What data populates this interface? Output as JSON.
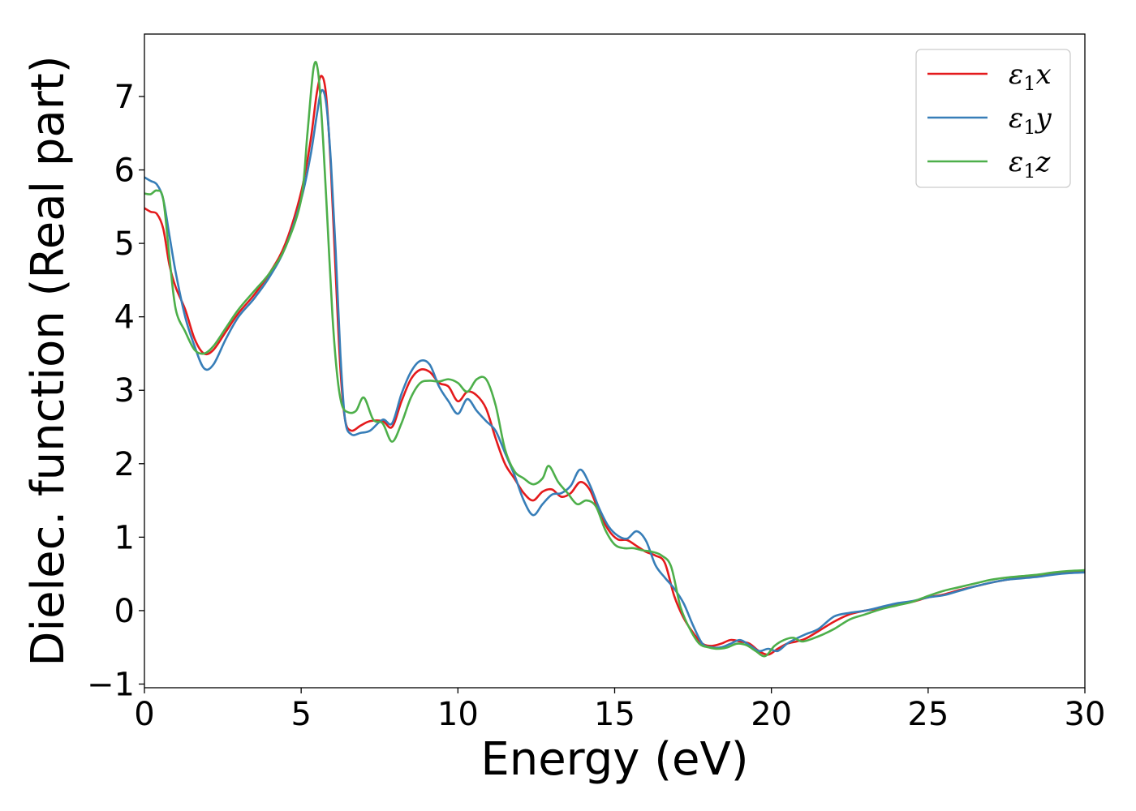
{
  "chart_data": {
    "type": "line",
    "title": "",
    "xlabel": "Energy (eV)",
    "ylabel": "Dielec. function (Real part)",
    "xlim": [
      0,
      30
    ],
    "ylim": [
      -1.05,
      7.85
    ],
    "xticks": [
      0,
      5,
      10,
      15,
      20,
      25,
      30
    ],
    "yticks": [
      -1,
      0,
      1,
      2,
      3,
      4,
      5,
      6,
      7
    ],
    "xtick_labels": [
      "0",
      "5",
      "10",
      "15",
      "20",
      "25",
      "30"
    ],
    "ytick_labels": [
      "−1",
      "0",
      "1",
      "2",
      "3",
      "4",
      "5",
      "6",
      "7"
    ],
    "grid": false,
    "legend_position": "top-right",
    "series": [
      {
        "name": "ε1x",
        "legend_base": "ε",
        "legend_sub": "1",
        "legend_var": "x",
        "color": "#e41a1c",
        "x": [
          0,
          0.2,
          0.4,
          0.6,
          0.8,
          1.0,
          1.3,
          1.6,
          1.9,
          2.2,
          2.6,
          3.0,
          3.5,
          4.0,
          4.5,
          5.0,
          5.3,
          5.5,
          5.65,
          5.8,
          5.95,
          6.1,
          6.25,
          6.4,
          6.6,
          6.9,
          7.2,
          7.6,
          7.9,
          8.2,
          8.5,
          8.8,
          9.1,
          9.4,
          9.7,
          10.0,
          10.3,
          10.6,
          10.9,
          11.2,
          11.5,
          11.8,
          12.1,
          12.4,
          12.7,
          13.0,
          13.3,
          13.6,
          13.9,
          14.2,
          14.5,
          14.8,
          15.1,
          15.4,
          15.7,
          16.0,
          16.3,
          16.6,
          16.9,
          17.2,
          17.5,
          17.8,
          18.1,
          18.4,
          18.7,
          19.0,
          19.3,
          19.6,
          19.9,
          20.2,
          20.5,
          20.8,
          21.1,
          21.5,
          22.0,
          22.5,
          23.0,
          23.5,
          24.0,
          24.5,
          25.0,
          25.5,
          26.0,
          26.5,
          27.0,
          27.5,
          28.0,
          28.5,
          29.0,
          29.5,
          30.0
        ],
        "y": [
          5.48,
          5.43,
          5.4,
          5.2,
          4.7,
          4.4,
          4.1,
          3.7,
          3.5,
          3.55,
          3.8,
          4.05,
          4.3,
          4.6,
          5.0,
          5.7,
          6.4,
          7.05,
          7.28,
          7.0,
          6.0,
          4.6,
          3.3,
          2.6,
          2.45,
          2.52,
          2.58,
          2.58,
          2.5,
          2.85,
          3.15,
          3.28,
          3.25,
          3.1,
          3.05,
          2.85,
          2.98,
          2.93,
          2.75,
          2.35,
          2.0,
          1.8,
          1.6,
          1.5,
          1.62,
          1.65,
          1.55,
          1.6,
          1.75,
          1.65,
          1.35,
          1.1,
          0.97,
          0.96,
          0.88,
          0.8,
          0.75,
          0.65,
          0.2,
          -0.1,
          -0.3,
          -0.45,
          -0.48,
          -0.45,
          -0.4,
          -0.42,
          -0.45,
          -0.55,
          -0.6,
          -0.52,
          -0.45,
          -0.42,
          -0.38,
          -0.28,
          -0.15,
          -0.05,
          0.0,
          0.03,
          0.08,
          0.12,
          0.18,
          0.22,
          0.28,
          0.33,
          0.38,
          0.42,
          0.45,
          0.47,
          0.5,
          0.52,
          0.53
        ]
      },
      {
        "name": "ε1y",
        "legend_base": "ε",
        "legend_sub": "1",
        "legend_var": "y",
        "color": "#377eb8",
        "x": [
          0,
          0.2,
          0.4,
          0.6,
          0.8,
          1.0,
          1.3,
          1.6,
          1.9,
          2.2,
          2.6,
          3.0,
          3.5,
          4.0,
          4.5,
          5.0,
          5.3,
          5.5,
          5.65,
          5.8,
          5.95,
          6.1,
          6.25,
          6.4,
          6.6,
          6.9,
          7.2,
          7.6,
          7.9,
          8.2,
          8.5,
          8.8,
          9.1,
          9.4,
          9.7,
          10.0,
          10.3,
          10.6,
          10.9,
          11.2,
          11.5,
          11.8,
          12.1,
          12.4,
          12.7,
          13.0,
          13.3,
          13.6,
          13.9,
          14.2,
          14.5,
          14.8,
          15.1,
          15.4,
          15.7,
          16.0,
          16.3,
          16.6,
          16.9,
          17.2,
          17.5,
          17.8,
          18.1,
          18.4,
          18.7,
          19.0,
          19.3,
          19.6,
          19.9,
          20.2,
          20.5,
          20.8,
          21.1,
          21.5,
          22.0,
          22.5,
          23.0,
          23.5,
          24.0,
          24.5,
          25.0,
          25.5,
          26.0,
          26.5,
          27.0,
          27.5,
          28.0,
          28.5,
          29.0,
          29.5,
          30.0
        ],
        "y": [
          5.9,
          5.85,
          5.8,
          5.6,
          5.1,
          4.6,
          4.0,
          3.6,
          3.3,
          3.35,
          3.7,
          4.0,
          4.25,
          4.55,
          4.95,
          5.6,
          6.2,
          6.75,
          7.08,
          6.9,
          6.1,
          4.9,
          3.5,
          2.6,
          2.4,
          2.42,
          2.45,
          2.6,
          2.55,
          2.95,
          3.25,
          3.4,
          3.35,
          3.05,
          2.85,
          2.68,
          2.88,
          2.72,
          2.58,
          2.45,
          2.15,
          1.85,
          1.5,
          1.3,
          1.45,
          1.58,
          1.6,
          1.7,
          1.92,
          1.72,
          1.4,
          1.15,
          1.02,
          0.98,
          1.08,
          0.95,
          0.62,
          0.45,
          0.3,
          0.1,
          -0.2,
          -0.45,
          -0.5,
          -0.5,
          -0.45,
          -0.4,
          -0.47,
          -0.55,
          -0.52,
          -0.55,
          -0.45,
          -0.38,
          -0.32,
          -0.25,
          -0.08,
          -0.03,
          0.0,
          0.05,
          0.1,
          0.13,
          0.18,
          0.21,
          0.27,
          0.33,
          0.38,
          0.42,
          0.44,
          0.46,
          0.49,
          0.51,
          0.52
        ]
      },
      {
        "name": "ε1z",
        "legend_base": "ε",
        "legend_sub": "1",
        "legend_var": "z",
        "color": "#4daf4a",
        "x": [
          0,
          0.2,
          0.4,
          0.6,
          0.8,
          1.0,
          1.3,
          1.6,
          1.9,
          2.2,
          2.6,
          3.0,
          3.5,
          4.0,
          4.5,
          5.0,
          5.2,
          5.4,
          5.55,
          5.7,
          5.85,
          6.0,
          6.15,
          6.3,
          6.5,
          6.75,
          7.0,
          7.3,
          7.6,
          7.9,
          8.2,
          8.5,
          8.8,
          9.1,
          9.4,
          9.7,
          10.0,
          10.3,
          10.6,
          10.9,
          11.2,
          11.5,
          11.8,
          12.1,
          12.4,
          12.7,
          12.9,
          13.2,
          13.5,
          13.8,
          14.1,
          14.4,
          14.7,
          15.0,
          15.3,
          15.6,
          15.9,
          16.2,
          16.5,
          16.8,
          17.1,
          17.4,
          17.7,
          18.0,
          18.3,
          18.6,
          18.9,
          19.2,
          19.5,
          19.8,
          20.1,
          20.4,
          20.7,
          21.0,
          21.5,
          22.0,
          22.5,
          23.0,
          23.5,
          24.0,
          24.5,
          25.0,
          25.5,
          26.0,
          26.5,
          27.0,
          27.5,
          28.0,
          28.5,
          29.0,
          29.5,
          30.0
        ],
        "y": [
          5.68,
          5.67,
          5.72,
          5.6,
          4.8,
          4.1,
          3.8,
          3.55,
          3.5,
          3.6,
          3.85,
          4.1,
          4.35,
          4.6,
          4.95,
          5.6,
          6.5,
          7.4,
          7.3,
          6.4,
          5.2,
          4.0,
          3.2,
          2.8,
          2.7,
          2.72,
          2.9,
          2.6,
          2.55,
          2.3,
          2.55,
          2.9,
          3.1,
          3.13,
          3.12,
          3.15,
          3.1,
          2.98,
          3.15,
          3.15,
          2.8,
          2.2,
          1.9,
          1.8,
          1.72,
          1.8,
          1.97,
          1.75,
          1.6,
          1.45,
          1.5,
          1.42,
          1.1,
          0.9,
          0.85,
          0.85,
          0.82,
          0.8,
          0.75,
          0.6,
          0.05,
          -0.25,
          -0.45,
          -0.5,
          -0.52,
          -0.5,
          -0.45,
          -0.47,
          -0.55,
          -0.62,
          -0.48,
          -0.4,
          -0.37,
          -0.42,
          -0.35,
          -0.25,
          -0.12,
          -0.05,
          0.02,
          0.07,
          0.12,
          0.2,
          0.27,
          0.32,
          0.37,
          0.42,
          0.45,
          0.47,
          0.49,
          0.52,
          0.54,
          0.55
        ]
      }
    ]
  }
}
